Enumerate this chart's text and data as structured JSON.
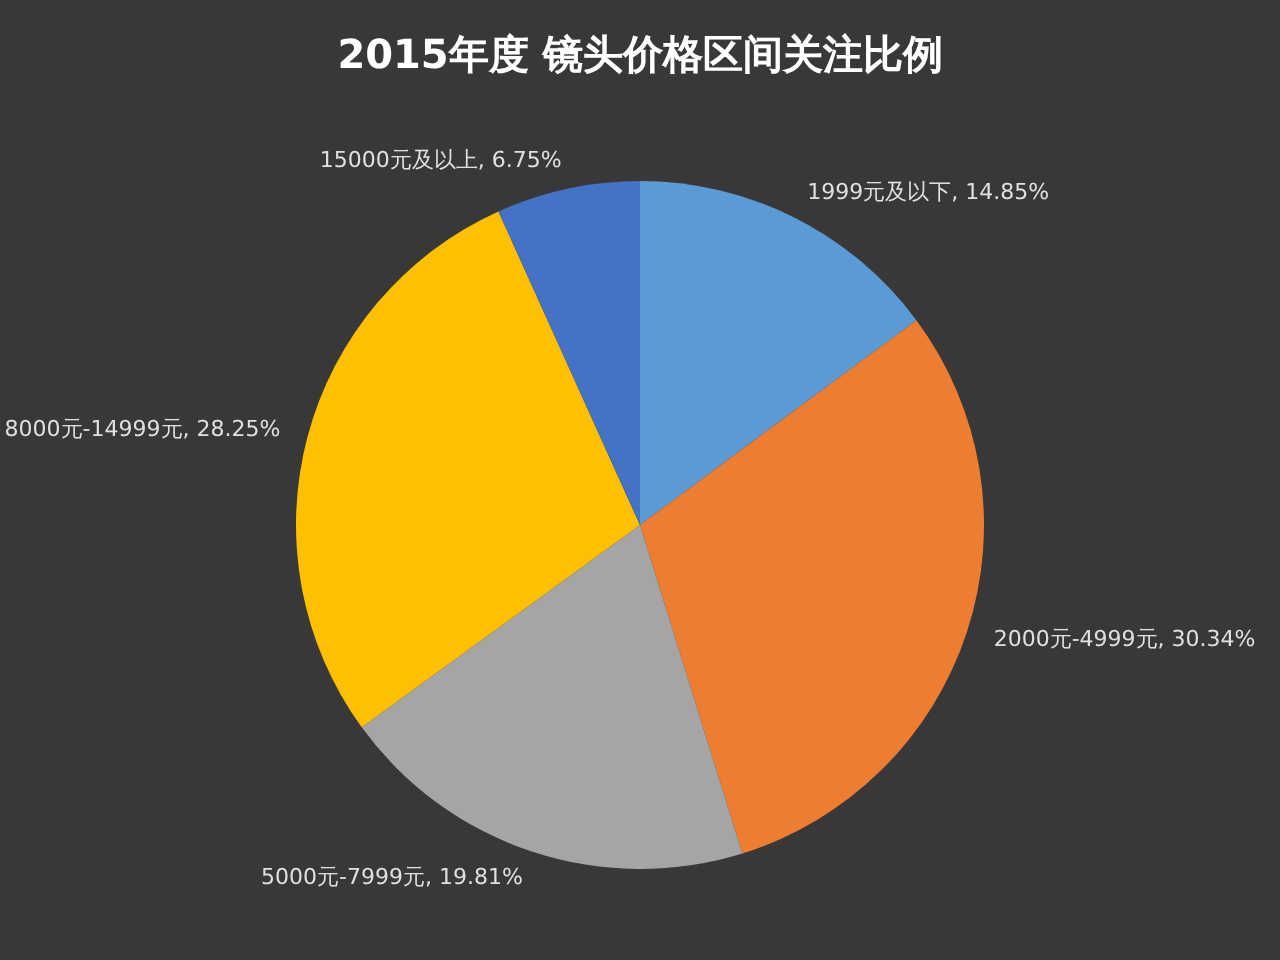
{
  "chart_data": {
    "type": "pie",
    "title": "2015年度 镜头价格区间关注比例",
    "categories": [
      "1999元及以下",
      "2000元-4999元",
      "5000元-7999元",
      "8000元-14999元",
      "15000元及以上"
    ],
    "values": [
      14.85,
      30.34,
      19.81,
      28.25,
      6.75
    ],
    "value_labels": [
      "14.85%",
      "30.34%",
      "19.81%",
      "28.25%",
      "6.75%"
    ],
    "colors": [
      "#5b9bd5",
      "#ed7d31",
      "#a5a5a5",
      "#ffc000",
      "#4472c4"
    ],
    "legend": false
  }
}
